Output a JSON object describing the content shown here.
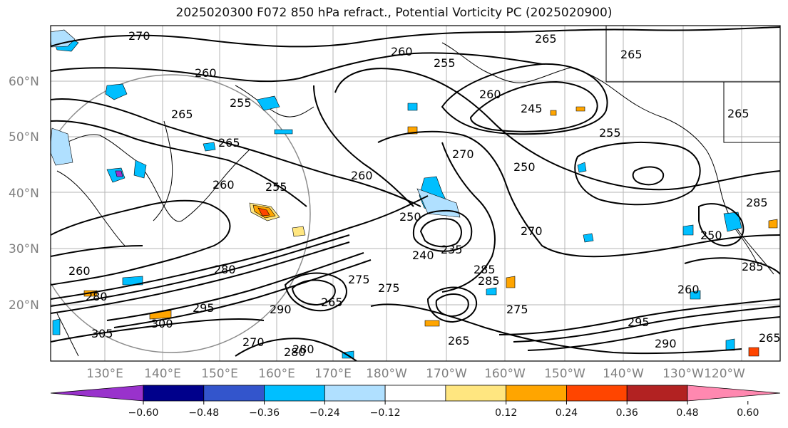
{
  "title": "2025020300 F072 850 hPa refract., Potential Vorticity PC (2025020900)",
  "lat_labels": [
    "60°N",
    "50°N",
    "40°N",
    "30°N",
    "20°N"
  ],
  "lon_labels": [
    "130°E",
    "140°E",
    "150°E",
    "160°E",
    "170°E",
    "180°W",
    "170°W",
    "160°W",
    "150°W",
    "140°W",
    "130°W",
    "120°W"
  ],
  "colorbar": {
    "colors": [
      "#9932cc",
      "#00008b",
      "#3355cc",
      "#00bfff",
      "#b0e0ff",
      "#ffffff",
      "#ffe680",
      "#ffa500",
      "#ff4500",
      "#b22222",
      "#ff88b0"
    ],
    "ticks": [
      "−0.60",
      "−0.48",
      "−0.36",
      "−0.24",
      "−0.12",
      "0.12",
      "0.24",
      "0.36",
      "0.48",
      "0.60"
    ]
  },
  "contour_labels": [
    "270",
    "265",
    "260",
    "265",
    "255",
    "265",
    "265",
    "265",
    "260",
    "255",
    "260",
    "260",
    "255",
    "245",
    "250",
    "255",
    "270",
    "260",
    "250",
    "240",
    "235",
    "270",
    "265",
    "285",
    "275",
    "280",
    "260",
    "280",
    "295",
    "300",
    "305",
    "280",
    "290",
    "265",
    "275",
    "285",
    "285",
    "250",
    "260",
    "265",
    "295",
    "270",
    "290",
    "285",
    "280",
    "275"
  ]
}
